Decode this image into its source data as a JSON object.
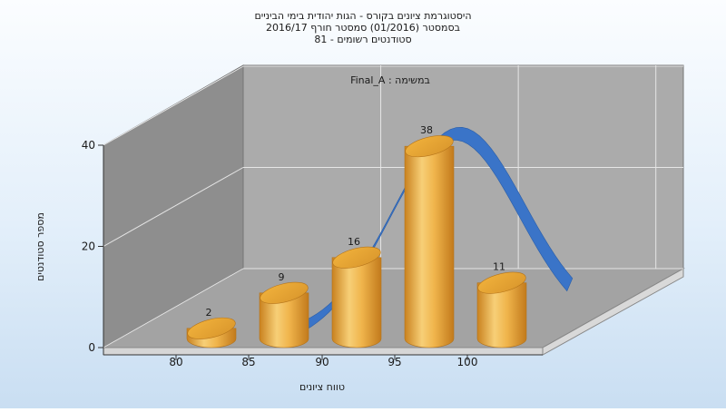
{
  "chart_data": {
    "type": "bar",
    "title_lines": [
      "היסטוגרמת ציונים בקורס - הגות יהודית בימי הביניים",
      "בסמסטר  (01/2016)  סמסטר חורף 2016/17",
      "סטודנטים רשומים - 81"
    ],
    "inner_label": "במשימה : Final_A",
    "xlabel": "טווח ציונים",
    "ylabel": "מספר סטודנטים",
    "x_ticks": [
      "80",
      "85",
      "90",
      "95",
      "100"
    ],
    "y_ticks": [
      "0",
      "20",
      "40"
    ],
    "ylim": [
      0,
      40
    ],
    "bins": [
      "80-85",
      "85-90",
      "90-95",
      "95-100",
      "100+"
    ],
    "values": [
      2,
      9,
      16,
      38,
      11
    ],
    "colors": {
      "bar": "#e8a83c",
      "bar_top": "#f4c04a",
      "curve": "#3a74c8",
      "wall": "#a6a6a6",
      "floor": "#a0a0a0"
    },
    "grid": true,
    "overlay": "normal-curve"
  }
}
